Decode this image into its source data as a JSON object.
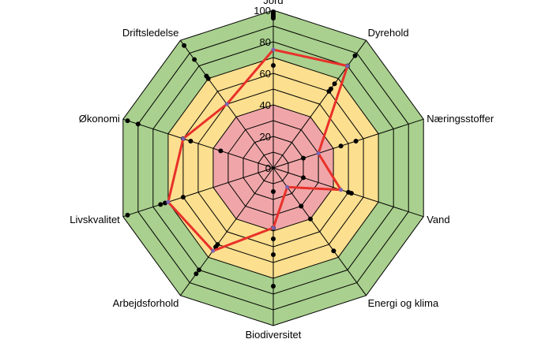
{
  "chart_data": {
    "type": "radar",
    "title": "",
    "axes": [
      "Jord",
      "Dyrehold",
      "Næringsstoffer",
      "Vand",
      "Energi og klima",
      "Biodiversitet",
      "Arbejdsforhold",
      "Livskvalitet",
      "Økonomi",
      "Driftsledelse"
    ],
    "rlim": [
      0,
      100
    ],
    "ticks": [
      0,
      20,
      40,
      60,
      80,
      100
    ],
    "bands": [
      {
        "from": 0,
        "to": 40,
        "color": "#f0a6a8"
      },
      {
        "from": 40,
        "to": 70,
        "color": "#fcdf8f"
      },
      {
        "from": 70,
        "to": 100,
        "color": "#a9d08e"
      }
    ],
    "series": [
      {
        "values": [
          75,
          80,
          30,
          45,
          15,
          38,
          65,
          70,
          60,
          50
        ],
        "color": "#e8312a"
      }
    ],
    "markers": [
      [
        65,
        95,
        96,
        97,
        98,
        99
      ],
      [
        60,
        62,
        66,
        80,
        88
      ],
      [
        20,
        45,
        55
      ],
      [
        20,
        50,
        52
      ],
      [
        30,
        40,
        65
      ],
      [
        15,
        38,
        45,
        55,
        75
      ],
      [
        60,
        62,
        80,
        83
      ],
      [
        60,
        72,
        75,
        97
      ],
      [
        35,
        55,
        60,
        90,
        97
      ],
      [
        70,
        72,
        85,
        96
      ]
    ]
  }
}
